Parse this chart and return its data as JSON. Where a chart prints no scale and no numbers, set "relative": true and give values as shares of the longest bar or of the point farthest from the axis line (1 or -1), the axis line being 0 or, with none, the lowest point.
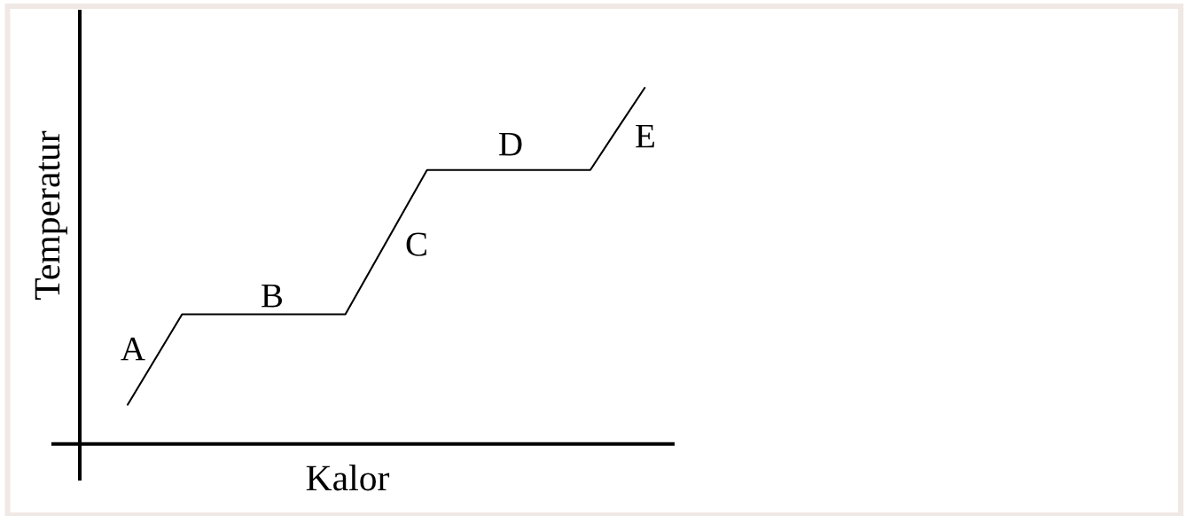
{
  "chart_data": {
    "type": "line",
    "relative": true,
    "xlabel": "Kalor",
    "ylabel": "Temperatur",
    "line_style": "solid",
    "categories": [
      null,
      null,
      null,
      null,
      null,
      null,
      null,
      null,
      null,
      null,
      null,
      null,
      null,
      null,
      null,
      null,
      null,
      null,
      null,
      null
    ],
    "series": [
      {
        "color": "#000000",
        "values": [
          0.11,
          0.237,
          0.364,
          0.364,
          0.364,
          0.364,
          0.364,
          0.364,
          0.364,
          0.499,
          0.634,
          0.769,
          0.769,
          0.769,
          0.769,
          0.769,
          0.769,
          0.769,
          0.885,
          1
        ]
      }
    ],
    "annotations": [
      "A",
      "B",
      "C",
      "D",
      "E"
    ]
  }
}
